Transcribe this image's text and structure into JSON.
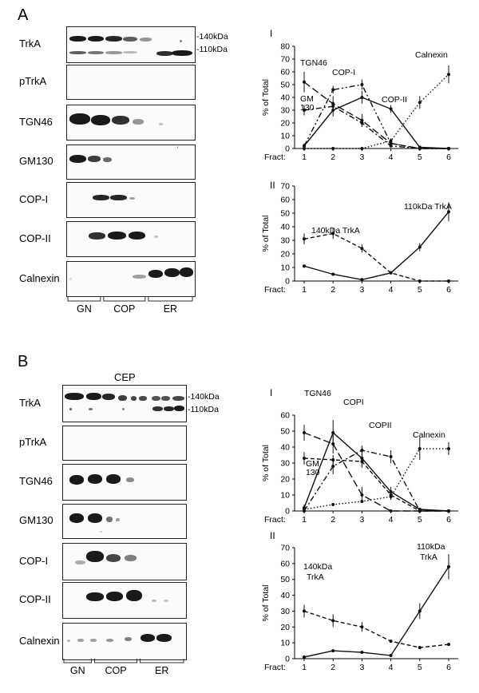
{
  "panels": {
    "a": {
      "letter": "A",
      "blots": [
        "TrkA",
        "pTrkA",
        "TGN46",
        "GM130",
        "COP-I",
        "COP-II",
        "Calnexin"
      ],
      "kda": [
        "-140kDa",
        "-110kDa"
      ],
      "groups": [
        "GN",
        "COP",
        "ER"
      ]
    },
    "b": {
      "letter": "B",
      "title": "CEP",
      "blots": [
        "TrkA",
        "pTrkA",
        "TGN46",
        "GM130",
        "COP-I",
        "COP-II",
        "Calnexin"
      ],
      "kda": [
        "-140kDa",
        "-110kDa"
      ],
      "groups": [
        "GN",
        "COP",
        "ER"
      ]
    }
  },
  "chart_data": [
    {
      "id": "A-I",
      "type": "line",
      "roman": "I",
      "ylabel": "% of Total",
      "xlabel": "Fract:",
      "x": [
        1,
        2,
        3,
        4,
        5,
        6
      ],
      "ylim": [
        0,
        80
      ],
      "yticks": [
        0,
        10,
        20,
        30,
        40,
        50,
        60,
        70,
        80
      ],
      "series": [
        {
          "name": "TGN46",
          "style": "long-dash",
          "values": [
            52,
            35,
            22,
            4,
            0,
            0
          ]
        },
        {
          "name": "GM 130",
          "style": "dash-dot",
          "values": [
            30,
            33,
            20,
            2,
            0,
            0
          ]
        },
        {
          "name": "COP-I",
          "style": "dash-dot-dot",
          "values": [
            2,
            46,
            50,
            4,
            0,
            0
          ]
        },
        {
          "name": "COP-II",
          "style": "solid",
          "values": [
            2,
            30,
            40,
            31,
            1,
            0
          ]
        },
        {
          "name": "Calnexin",
          "style": "dotted",
          "values": [
            0,
            0,
            0,
            6,
            36,
            58
          ]
        }
      ],
      "annotations": [
        "TGN46",
        "COP-I",
        "GM",
        "130",
        "COP-II",
        "Calnexin"
      ]
    },
    {
      "id": "A-II",
      "type": "line",
      "roman": "II",
      "ylabel": "% of Total",
      "xlabel": "Fract:",
      "x": [
        1,
        2,
        3,
        4,
        5,
        6
      ],
      "ylim": [
        0,
        70
      ],
      "yticks": [
        0,
        10,
        20,
        30,
        40,
        50,
        60,
        70
      ],
      "series": [
        {
          "name": "140kDa TrkA",
          "style": "dashed",
          "values": [
            31,
            35,
            24,
            6,
            0,
            0
          ]
        },
        {
          "name": "110kDa TrkA",
          "style": "solid",
          "values": [
            11,
            5,
            1,
            6,
            25,
            51
          ]
        }
      ],
      "annotations": [
        "140kDa TrkA",
        "110kDa TrkA"
      ]
    },
    {
      "id": "B-I",
      "type": "line",
      "roman": "I",
      "ylabel": "% of Total",
      "xlabel": "Fract:",
      "x": [
        1,
        2,
        3,
        4,
        5,
        6
      ],
      "ylim": [
        0,
        60
      ],
      "yticks": [
        0,
        10,
        20,
        30,
        40,
        50,
        60
      ],
      "series": [
        {
          "name": "TGN46",
          "style": "long-dash",
          "values": [
            49,
            42,
            10,
            0,
            0,
            0
          ]
        },
        {
          "name": "GM 130",
          "style": "dashed",
          "values": [
            33,
            32,
            31,
            10,
            0,
            0
          ]
        },
        {
          "name": "COPI",
          "style": "solid",
          "values": [
            2,
            49,
            33,
            12,
            1,
            0
          ]
        },
        {
          "name": "COPII",
          "style": "dash-dot",
          "values": [
            0,
            28,
            38,
            34,
            0,
            0
          ]
        },
        {
          "name": "Calnexin",
          "style": "dotted",
          "values": [
            1,
            4,
            6,
            9,
            39,
            39
          ]
        }
      ],
      "annotations": [
        "TGN46",
        "COPI",
        "COPII",
        "Calnexin",
        "GM",
        "130"
      ]
    },
    {
      "id": "B-II",
      "type": "line",
      "roman": "II",
      "ylabel": "% of Total",
      "xlabel": "Fract:",
      "x": [
        1,
        2,
        3,
        4,
        5,
        6
      ],
      "ylim": [
        0,
        70
      ],
      "yticks": [
        0,
        10,
        20,
        30,
        40,
        50,
        60,
        70
      ],
      "series": [
        {
          "name": "140kDa TrkA",
          "style": "dashed",
          "values": [
            30,
            24,
            20,
            11,
            7,
            9
          ]
        },
        {
          "name": "110kDa TrkA",
          "style": "solid",
          "values": [
            1,
            5,
            4,
            2,
            30,
            58
          ]
        }
      ],
      "annotations": [
        "140kDa",
        "TrkA",
        "110kDa",
        "TrkA"
      ]
    }
  ]
}
